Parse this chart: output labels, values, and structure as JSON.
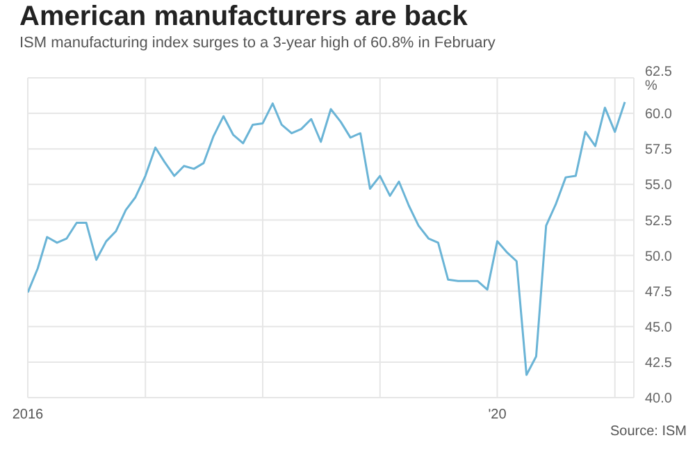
{
  "chart_data": {
    "type": "line",
    "title": "American manufacturers are back",
    "subtitle": "ISM manufacturing index surges to a 3-year high of 60.8% in February",
    "annotations": [
      "Source: ISM"
    ],
    "x": [
      "2016-01",
      "2016-02",
      "2016-03",
      "2016-04",
      "2016-05",
      "2016-06",
      "2016-07",
      "2016-08",
      "2016-09",
      "2016-10",
      "2016-11",
      "2016-12",
      "2017-01",
      "2017-02",
      "2017-03",
      "2017-04",
      "2017-05",
      "2017-06",
      "2017-07",
      "2017-08",
      "2017-09",
      "2017-10",
      "2017-11",
      "2017-12",
      "2018-01",
      "2018-02",
      "2018-03",
      "2018-04",
      "2018-05",
      "2018-06",
      "2018-07",
      "2018-08",
      "2018-09",
      "2018-10",
      "2018-11",
      "2018-12",
      "2019-01",
      "2019-02",
      "2019-03",
      "2019-04",
      "2019-05",
      "2019-06",
      "2019-07",
      "2019-08",
      "2019-09",
      "2019-10",
      "2019-11",
      "2019-12",
      "2020-01",
      "2020-02",
      "2020-03",
      "2020-04",
      "2020-05",
      "2020-06",
      "2020-07",
      "2020-08",
      "2020-09",
      "2020-10",
      "2020-11",
      "2020-12",
      "2021-01",
      "2021-02"
    ],
    "series": [
      {
        "color": "#6ab4d6",
        "values": [
          47.4,
          49.1,
          51.3,
          50.9,
          51.2,
          52.3,
          52.3,
          49.7,
          51.0,
          51.7,
          53.2,
          54.1,
          55.6,
          57.6,
          56.6,
          55.6,
          56.3,
          56.1,
          56.5,
          58.4,
          59.8,
          58.5,
          57.9,
          59.2,
          59.3,
          60.7,
          59.2,
          58.6,
          58.9,
          59.6,
          58.0,
          60.3,
          59.4,
          58.3,
          58.6,
          54.7,
          55.6,
          54.2,
          55.2,
          53.5,
          52.1,
          51.2,
          50.9,
          48.3,
          48.2,
          48.2,
          48.2,
          47.6,
          51.0,
          50.2,
          49.6,
          41.6,
          42.9,
          52.1,
          53.6,
          55.5,
          55.6,
          58.7,
          57.7,
          60.4,
          58.7,
          60.8
        ]
      }
    ],
    "xlim": [
      "2016-01",
      "2021-03"
    ],
    "xticks": [
      {
        "value": "2016-01",
        "label": "2016"
      },
      {
        "value": "2017-01",
        "label": null
      },
      {
        "value": "2018-01",
        "label": null
      },
      {
        "value": "2019-01",
        "label": null
      },
      {
        "value": "2020-01",
        "label": "'20"
      },
      {
        "value": "2021-01",
        "label": null
      }
    ],
    "ylim": [
      40,
      62.5
    ],
    "yticks": [
      {
        "value": 40,
        "label": "40.0"
      },
      {
        "value": 42.5,
        "label": "42.5"
      },
      {
        "value": 45,
        "label": "45.0"
      },
      {
        "value": 47.5,
        "label": "47.5"
      },
      {
        "value": 50,
        "label": "50.0"
      },
      {
        "value": 52.5,
        "label": "52.5"
      },
      {
        "value": 55,
        "label": "55.0"
      },
      {
        "value": 57.5,
        "label": "57.5"
      },
      {
        "value": 60,
        "label": "60.0"
      },
      {
        "value": 62.5,
        "label": "62.5 %"
      }
    ],
    "grid": true,
    "marker": "none",
    "line_style": "solid"
  }
}
